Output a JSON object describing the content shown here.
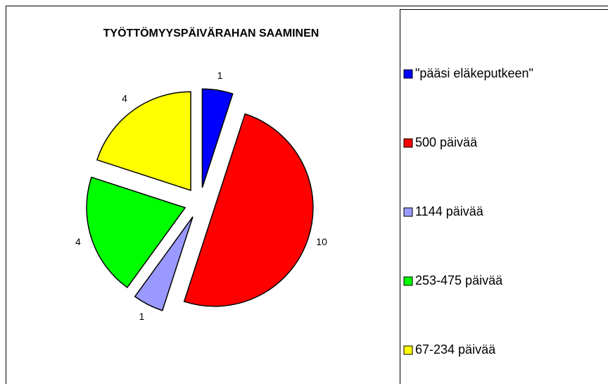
{
  "chart_data": {
    "type": "pie",
    "title": "TYÖTTÖMYYSPÄIVÄRAHAN SAAMINEN",
    "categories": [
      "\"pääsi eläkeputkeen\"",
      "500 päivää",
      "1144 päivää",
      "253-475 päivää",
      "67-234 päivää"
    ],
    "values": [
      1,
      10,
      1,
      4,
      4
    ],
    "colors": [
      "#0000ff",
      "#ff0000",
      "#9999ff",
      "#00ff00",
      "#ffff00"
    ],
    "legend": "right"
  }
}
